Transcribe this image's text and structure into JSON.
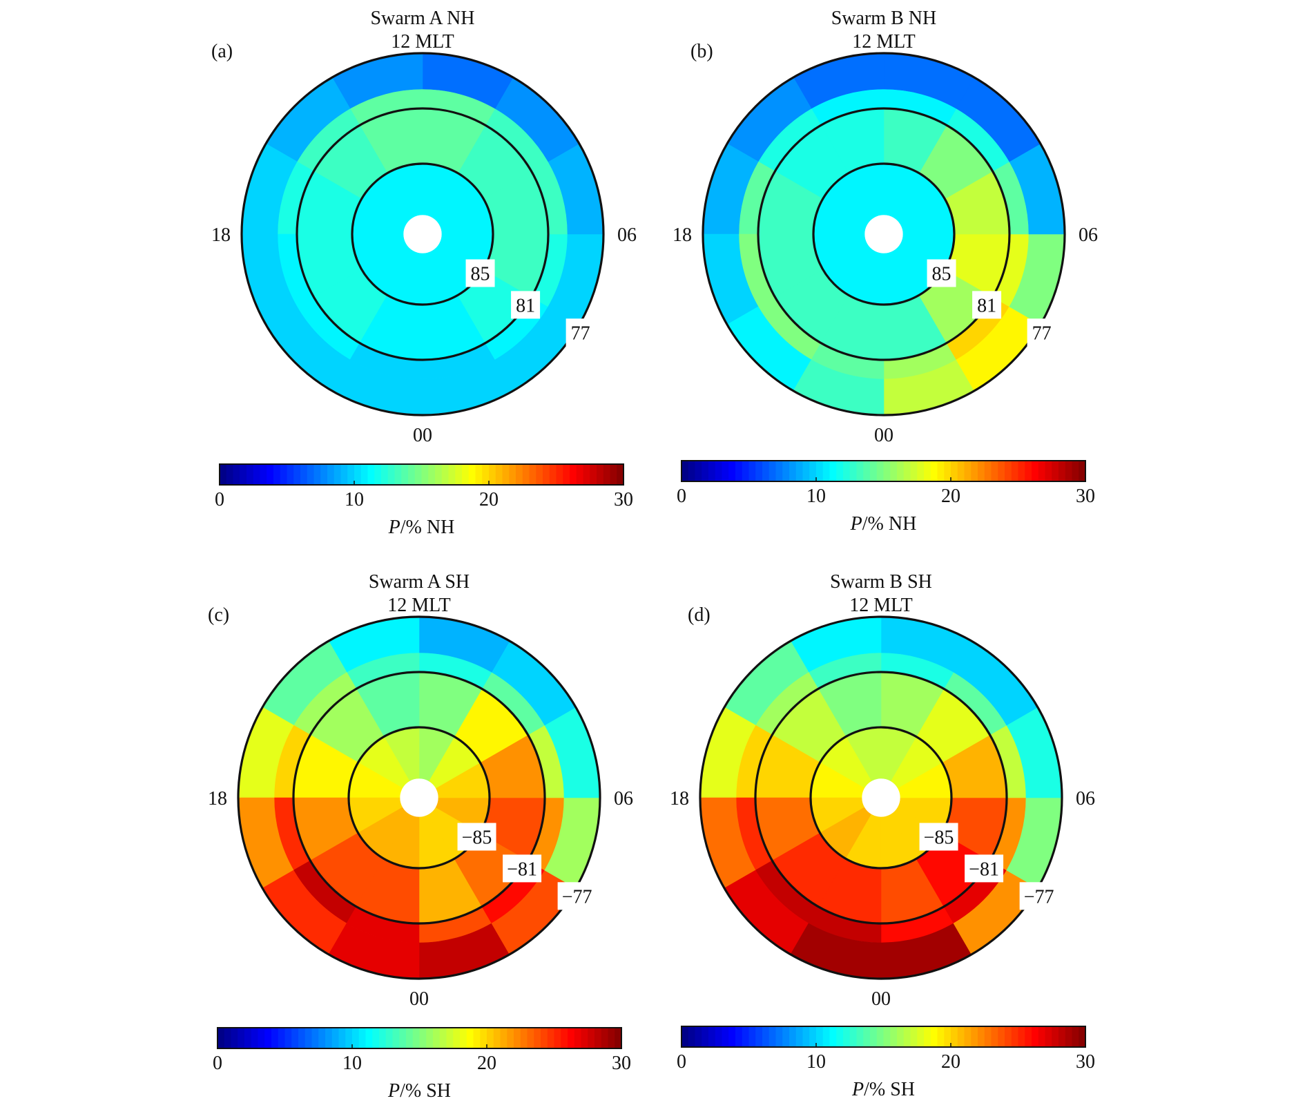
{
  "figure": {
    "panels": [
      {
        "id": "a",
        "letter": "(a)",
        "title": "Swarm A NH",
        "top_hour": "12 MLT",
        "right_hour": "06",
        "left_hour": "18",
        "bottom_hour": "00",
        "lat_labels": [
          "85",
          "81",
          "77"
        ],
        "cb_label_prefix": "P",
        "cb_label_suffix": "/% NH",
        "cb_ticks": [
          "0",
          "10",
          "20",
          "30"
        ]
      },
      {
        "id": "b",
        "letter": "(b)",
        "title": "Swarm B NH",
        "top_hour": "12 MLT",
        "right_hour": "06",
        "left_hour": "18",
        "bottom_hour": "00",
        "lat_labels": [
          "85",
          "81",
          "77"
        ],
        "cb_label_prefix": "P",
        "cb_label_suffix": "/% NH",
        "cb_ticks": [
          "0",
          "10",
          "20",
          "30"
        ]
      },
      {
        "id": "c",
        "letter": "(c)",
        "title": "Swarm A SH",
        "top_hour": "12 MLT",
        "right_hour": "06",
        "left_hour": "18",
        "bottom_hour": "00",
        "lat_labels": [
          "−85",
          "−81",
          "−77"
        ],
        "cb_label_prefix": "P",
        "cb_label_suffix": "/% SH",
        "cb_ticks": [
          "0",
          "10",
          "20",
          "30"
        ]
      },
      {
        "id": "d",
        "letter": "(d)",
        "title": "Swarm B SH",
        "top_hour": "12 MLT",
        "right_hour": "06",
        "left_hour": "18",
        "bottom_hour": "00",
        "lat_labels": [
          "−85",
          "−81",
          "−77"
        ],
        "cb_label_prefix": "P",
        "cb_label_suffix": "/% SH",
        "cb_ticks": [
          "0",
          "10",
          "20",
          "30"
        ]
      }
    ]
  },
  "chart_data": [
    {
      "type": "heatmap",
      "title": "Swarm A NH",
      "projection": "polar",
      "angle_unit": "MLT hours, 12 at top, 06 right, 18 left, 00 bottom",
      "rings": [
        {
          "lat_range": [
            85,
            89
          ],
          "values": [
            11,
            11,
            11,
            11,
            11,
            11,
            11,
            11,
            11,
            11,
            11,
            11
          ]
        },
        {
          "lat_range": [
            81,
            85
          ],
          "values": [
            11,
            12,
            13,
            13,
            13,
            14,
            14,
            13,
            12,
            12,
            12,
            11
          ]
        },
        {
          "lat_range": [
            77,
            81
          ],
          "values": [
            10,
            11,
            12,
            13,
            13,
            14,
            14,
            13,
            12,
            11,
            11,
            10
          ]
        },
        {
          "lat_range": [
            73,
            77
          ],
          "values": [
            10,
            10,
            10,
            9,
            8,
            7,
            8,
            9,
            10,
            10,
            10,
            10
          ]
        }
      ],
      "lat_circles": [
        85,
        81,
        77
      ],
      "colorbar": {
        "min": 0,
        "max": 30,
        "ticks": [
          0,
          10,
          20,
          30
        ],
        "colormap": "jet"
      }
    },
    {
      "type": "heatmap",
      "title": "Swarm B NH",
      "projection": "polar",
      "angle_unit": "MLT hours, 12 at top, 06 right, 18 left, 00 bottom",
      "rings": [
        {
          "lat_range": [
            85,
            89
          ],
          "values": [
            11,
            11,
            11,
            11,
            11,
            11,
            11,
            11,
            11,
            11,
            11,
            11
          ]
        },
        {
          "lat_range": [
            81,
            85
          ],
          "values": [
            13,
            16,
            18,
            17,
            15,
            13,
            12,
            12,
            13,
            13,
            13,
            13
          ]
        },
        {
          "lat_range": [
            77,
            81
          ],
          "values": [
            16,
            20,
            18,
            14,
            12,
            11,
            11,
            12,
            14,
            15,
            15,
            14
          ]
        },
        {
          "lat_range": [
            73,
            77
          ],
          "values": [
            17,
            19,
            15,
            9,
            7,
            7,
            7,
            8,
            9,
            10,
            11,
            13
          ]
        }
      ],
      "lat_circles": [
        85,
        81,
        77
      ],
      "colorbar": {
        "min": 0,
        "max": 30,
        "ticks": [
          0,
          10,
          20,
          30
        ],
        "colormap": "jet"
      }
    },
    {
      "type": "heatmap",
      "title": "Swarm A SH",
      "projection": "polar",
      "angle_unit": "MLT hours, 12 at top, 06 right, 18 left, 00 bottom",
      "rings": [
        {
          "lat_range": [
            -89,
            -85
          ],
          "values": [
            20,
            20,
            21,
            20,
            18,
            16,
            17,
            18,
            19,
            20,
            21,
            21
          ]
        },
        {
          "lat_range": [
            -85,
            -81
          ],
          "values": [
            21,
            23,
            24,
            22,
            19,
            15,
            14,
            16,
            19,
            22,
            24,
            24
          ]
        },
        {
          "lat_range": [
            -81,
            -77
          ],
          "values": [
            24,
            26,
            22,
            17,
            14,
            12,
            13,
            16,
            20,
            25,
            28,
            27
          ]
        },
        {
          "lat_range": [
            -77,
            -73
          ],
          "values": [
            28,
            24,
            16,
            12,
            10,
            9,
            11,
            14,
            18,
            22,
            25,
            27
          ]
        }
      ],
      "lat_circles": [
        -85,
        -81,
        -77
      ],
      "colorbar": {
        "min": 0,
        "max": 30,
        "ticks": [
          0,
          10,
          20,
          30
        ],
        "colormap": "jet"
      }
    },
    {
      "type": "heatmap",
      "title": "Swarm B SH",
      "projection": "polar",
      "angle_unit": "MLT hours, 12 at top, 06 right, 18 left, 00 bottom",
      "rings": [
        {
          "lat_range": [
            -89,
            -85
          ],
          "values": [
            20,
            20,
            20,
            19,
            18,
            17,
            17,
            18,
            19,
            20,
            21,
            20
          ]
        },
        {
          "lat_range": [
            -85,
            -81
          ],
          "values": [
            24,
            26,
            24,
            21,
            18,
            16,
            15,
            17,
            20,
            23,
            25,
            25
          ]
        },
        {
          "lat_range": [
            -81,
            -77
          ],
          "values": [
            26,
            27,
            22,
            17,
            14,
            12,
            13,
            16,
            20,
            25,
            28,
            28
          ]
        },
        {
          "lat_range": [
            -77,
            -73
          ],
          "values": [
            29,
            22,
            15,
            12,
            10,
            10,
            11,
            14,
            18,
            23,
            27,
            29
          ]
        }
      ],
      "lat_circles": [
        -85,
        -81,
        -77
      ],
      "colorbar": {
        "min": 0,
        "max": 30,
        "ticks": [
          0,
          10,
          20,
          30
        ],
        "colormap": "jet"
      }
    }
  ]
}
